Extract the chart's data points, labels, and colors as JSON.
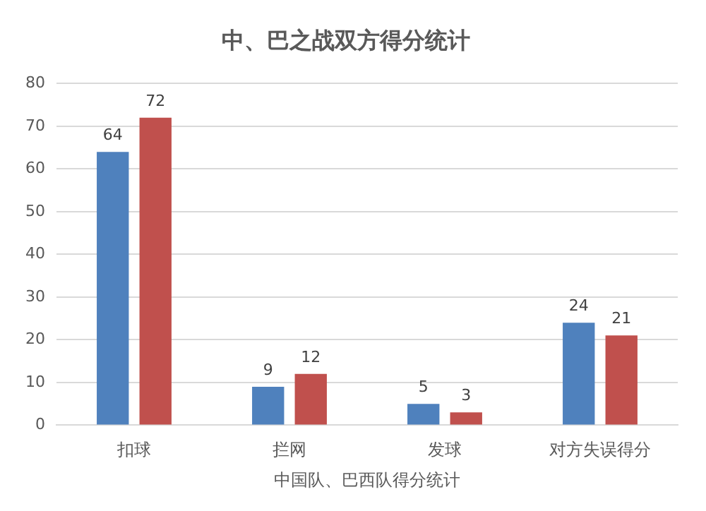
{
  "chart_data": {
    "type": "bar",
    "title": "中、巴之战双方得分统计",
    "xlabel": "中国队、巴西队得分统计",
    "categories": [
      "扣球",
      "拦网",
      "发球",
      "对方失误得分"
    ],
    "series": [
      {
        "color": "#4f81bd",
        "values": [
          64,
          9,
          5,
          24
        ]
      },
      {
        "color": "#c0504d",
        "values": [
          72,
          12,
          3,
          21
        ]
      }
    ],
    "ylim": [
      0,
      80
    ],
    "yticks": [
      0,
      10,
      20,
      30,
      40,
      50,
      60,
      70,
      80
    ],
    "grid": "y",
    "data_labels": true
  }
}
